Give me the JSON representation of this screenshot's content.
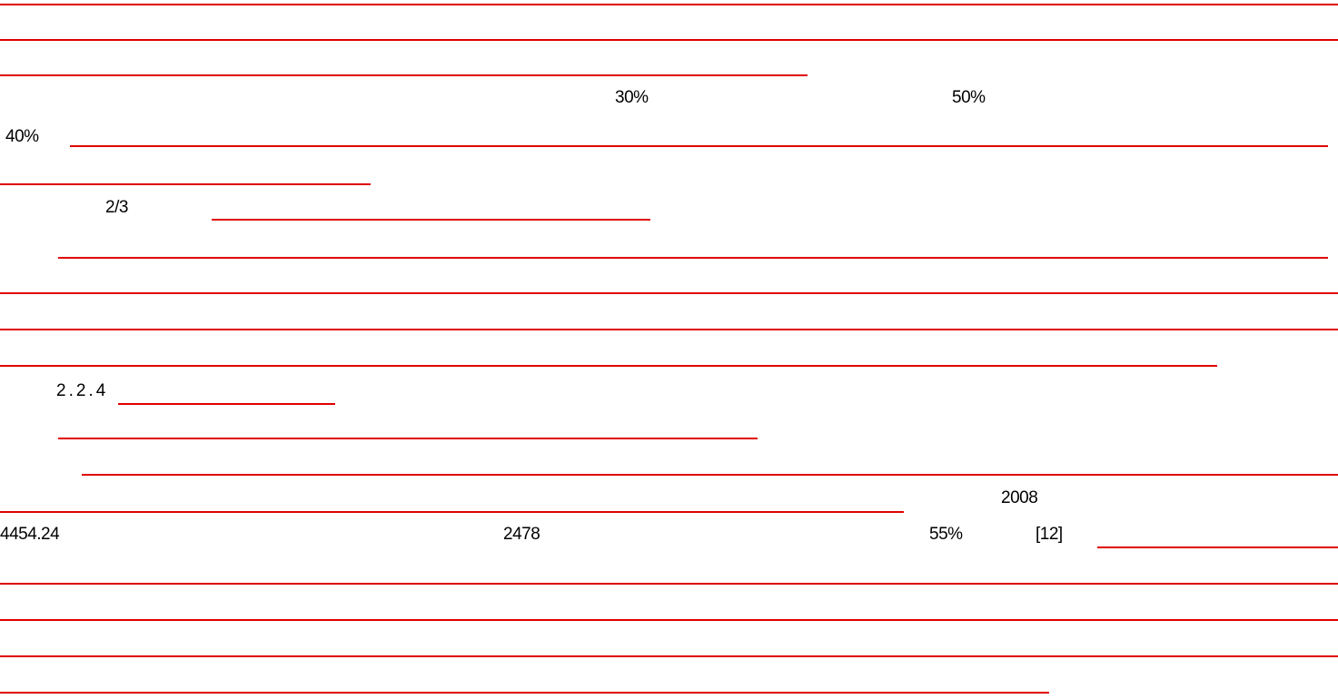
{
  "document": {
    "rule_color": "#e00000",
    "fragments": {
      "p30": "30%",
      "p50": "50%",
      "p40": "40%",
      "frac": "2/3",
      "section": "2.2.4",
      "year": "2008",
      "value1": "4454.24",
      "value2": "2478",
      "p55": "55%",
      "ref": "[12]"
    }
  }
}
